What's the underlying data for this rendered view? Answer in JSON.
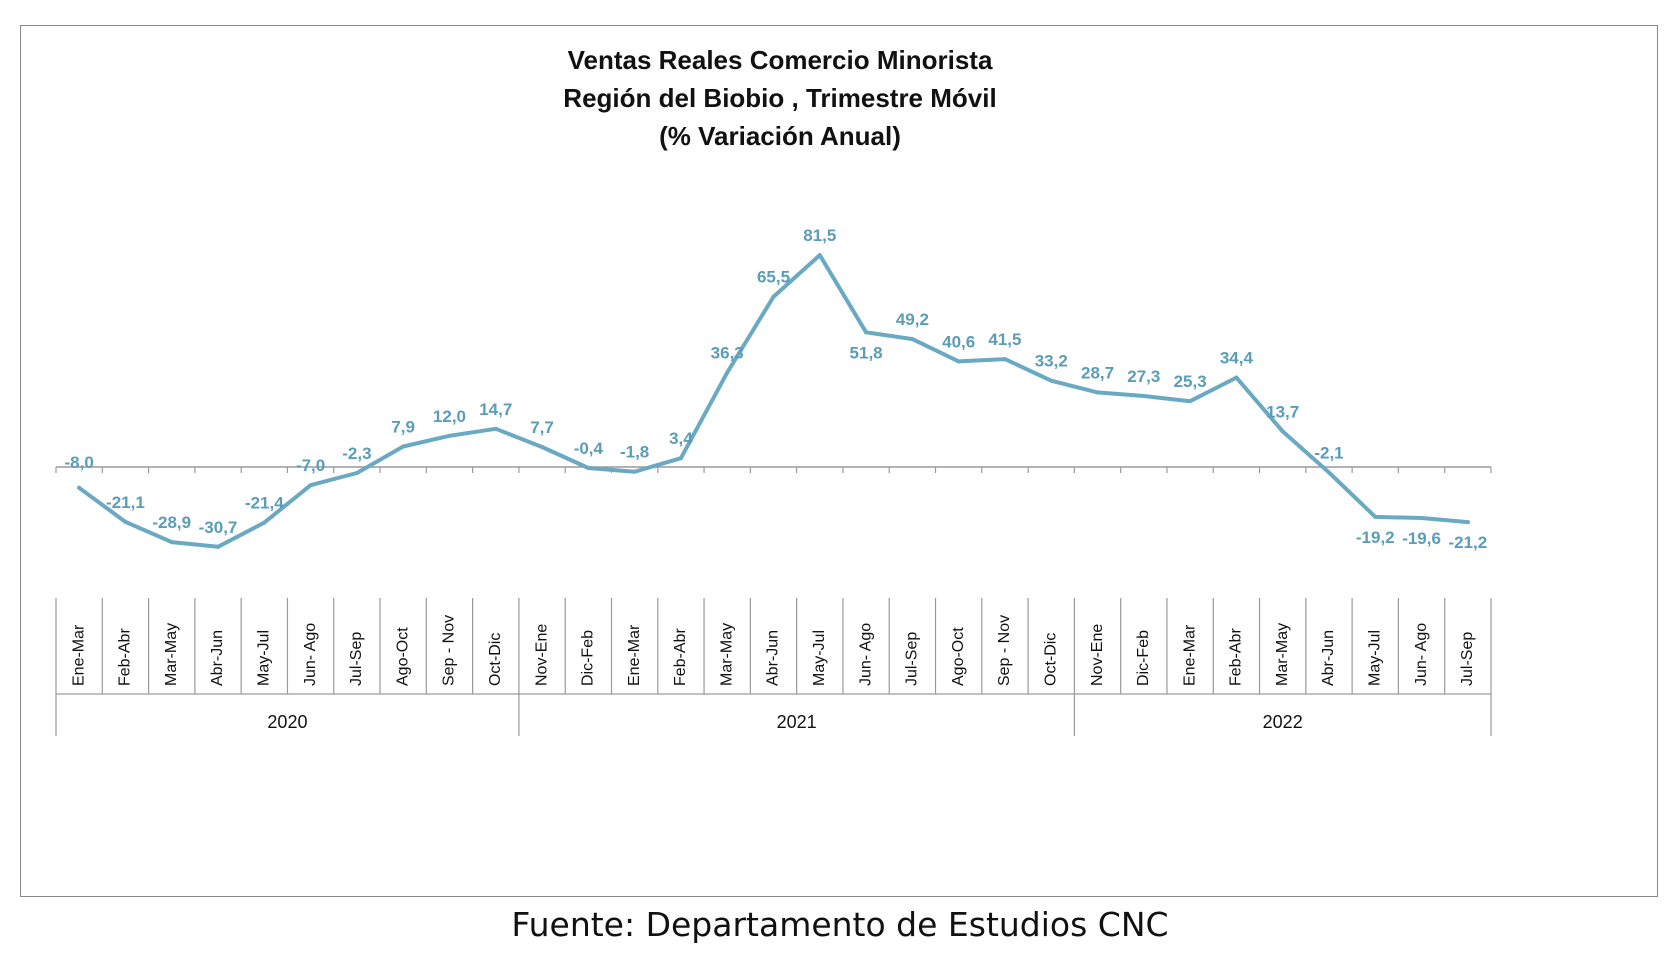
{
  "chart_data": {
    "type": "line",
    "title": "Ventas Reales Comercio Minorista",
    "subtitle_lines": [
      "Región del Biobio , Trimestre Móvil",
      "(% Variación Anual)"
    ],
    "categories": [
      "Ene-Mar",
      "Feb-Abr",
      "Mar-May",
      "Abr-Jun",
      "May-Jul",
      "Jun- Ago",
      "Jul-Sep",
      "Ago-Oct",
      "Sep - Nov",
      "Oct-Dic",
      "Nov-Ene",
      "Dic-Feb",
      "Ene-Mar",
      "Feb-Abr",
      "Mar-May",
      "Abr-Jun",
      "May-Jul",
      "Jun- Ago",
      "Jul-Sep",
      "Ago-Oct",
      "Sep - Nov",
      "Oct-Dic",
      "Nov-Ene",
      "Dic-Feb",
      "Ene-Mar",
      "Feb-Abr",
      "Mar-May",
      "Abr-Jun",
      "May-Jul",
      "Jun- Ago",
      "Jul-Sep"
    ],
    "year_groups": [
      {
        "label": "2020",
        "count": 10
      },
      {
        "label": "2021",
        "count": 12
      },
      {
        "label": "2022",
        "count": 9
      }
    ],
    "series": [
      {
        "values": [
          -8.0,
          -21.1,
          -28.9,
          -30.7,
          -21.4,
          -7.0,
          -2.3,
          7.9,
          12.0,
          14.7,
          7.7,
          -0.4,
          -1.8,
          3.4,
          36.3,
          65.5,
          81.5,
          51.8,
          49.2,
          40.6,
          41.5,
          33.2,
          28.7,
          27.3,
          25.3,
          34.4,
          13.7,
          -2.1,
          -19.2,
          -19.6,
          -21.2
        ],
        "labels": [
          "-8,0",
          "-21,1",
          "-28,9",
          "-30,7",
          "-21,4",
          "-7,0",
          "-2,3",
          "7,9",
          "12,0",
          "14,7",
          "7,7",
          "-0,4",
          "-1,8",
          "3,4",
          "36,3",
          "65,5",
          "81,5",
          "51,8",
          "49,2",
          "40,6",
          "41,5",
          "33,2",
          "28,7",
          "27,3",
          "25,3",
          "34,4",
          "13,7",
          "-2,1",
          "-19,2",
          "-19,6",
          "-21,2"
        ]
      }
    ],
    "ylim": [
      -45,
      85
    ],
    "grid": false,
    "legend": "none",
    "colors": {
      "line": "#6aa9c2",
      "label": "#5b9db8",
      "axis": "#9a9a9a",
      "text": "#111111"
    }
  },
  "source": "Fuente: Departamento de Estudios CNC"
}
